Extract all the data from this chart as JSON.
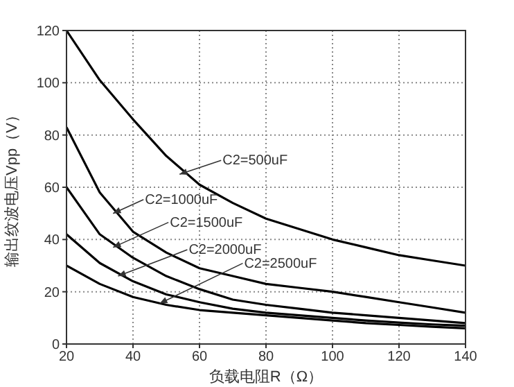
{
  "chart_data": {
    "type": "line",
    "xlabel": "负载电阻R（Ω）",
    "ylabel": "输出纹波电压Vpp（V）",
    "x": [
      20,
      30,
      40,
      50,
      60,
      70,
      80,
      90,
      100,
      110,
      120,
      130,
      140
    ],
    "series": [
      {
        "color": "#000000",
        "values": [
          120,
          101,
          86,
          72,
          61,
          54,
          48,
          44,
          40,
          37,
          34,
          32,
          30
        ]
      },
      {
        "color": "#000000",
        "values": [
          83,
          58,
          43,
          35,
          29,
          26,
          23,
          21.5,
          20,
          18,
          16,
          14,
          12
        ]
      },
      {
        "color": "#000000",
        "values": [
          60,
          42,
          33,
          26,
          21,
          17,
          15,
          13.5,
          12,
          11,
          10,
          9,
          8
        ]
      },
      {
        "color": "#000000",
        "values": [
          42,
          31,
          24,
          19,
          16,
          13.5,
          12,
          11,
          10,
          9,
          8.2,
          7.5,
          7
        ]
      },
      {
        "color": "#000000",
        "values": [
          30,
          23,
          18,
          15,
          13,
          12,
          11,
          10,
          9,
          8,
          7.3,
          6.6,
          6
        ]
      }
    ],
    "annotations": [
      {
        "text": "C2=500uF",
        "x": 54,
        "y": 65
      },
      {
        "text": "C2=1000uF",
        "x": 34,
        "y": 50
      },
      {
        "text": "C2=1500uF",
        "x": 34,
        "y": 37
      },
      {
        "text": "C2=2000uF",
        "x": 35.5,
        "y": 26
      },
      {
        "text": "C2=2500uF",
        "x": 48,
        "y": 15.5
      }
    ],
    "xlim": [
      20,
      140
    ],
    "ylim": [
      0,
      120
    ],
    "xticks": [
      20,
      40,
      60,
      80,
      100,
      120,
      140
    ],
    "yticks": [
      0,
      20,
      40,
      60,
      80,
      100,
      120
    ],
    "grid": true,
    "line_style": "solid",
    "marker": "none",
    "legend": false
  }
}
